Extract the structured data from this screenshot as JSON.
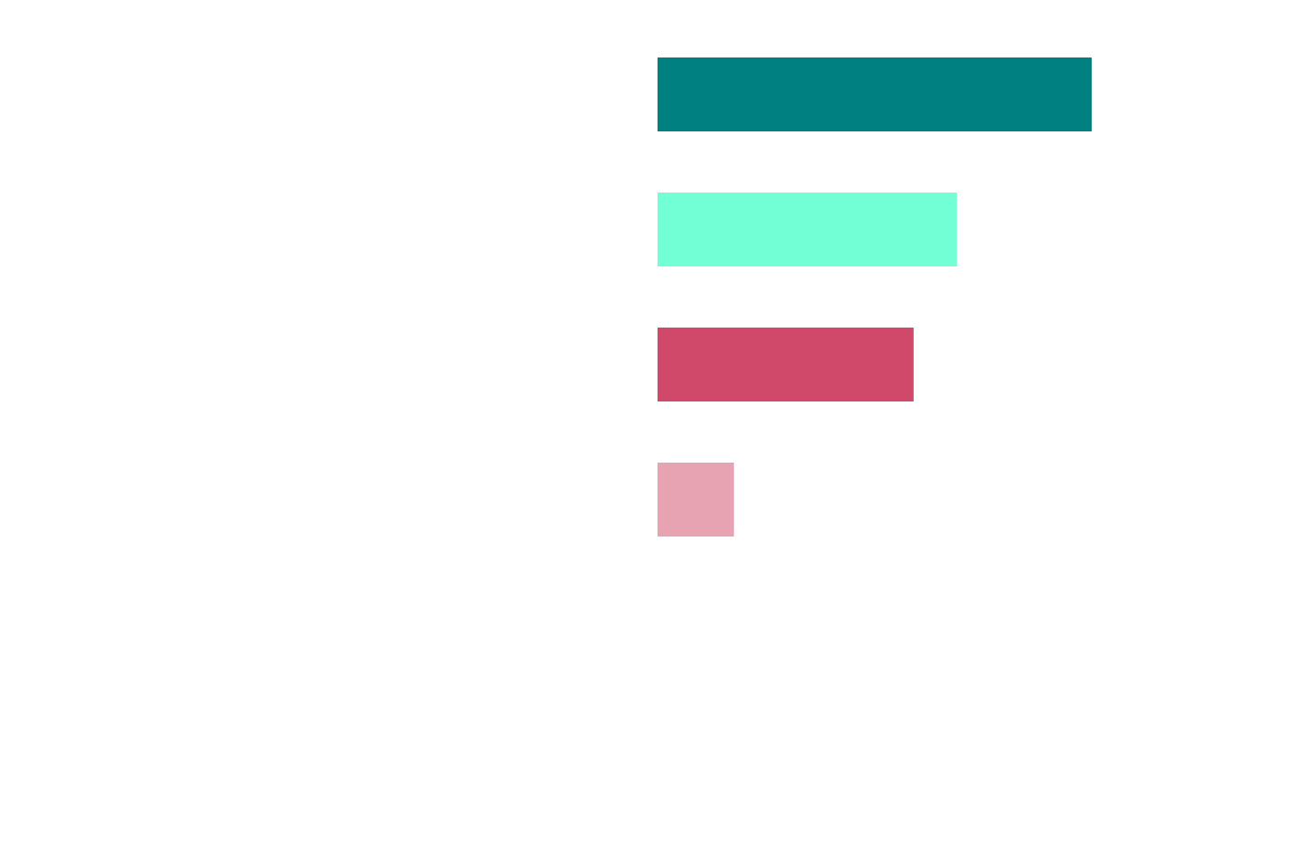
{
  "chart_data": {
    "type": "bar",
    "orientation": "horizontal",
    "categories": [
      "",
      "",
      "",
      ""
    ],
    "values": [
      100,
      69,
      59,
      17.6
    ],
    "colors": [
      "#008080",
      "#73ffd6",
      "#d1496a",
      "#e8a3b2"
    ],
    "xlim": [
      0,
      100
    ],
    "grid": false,
    "legend": "none",
    "axes_visible": false
  }
}
